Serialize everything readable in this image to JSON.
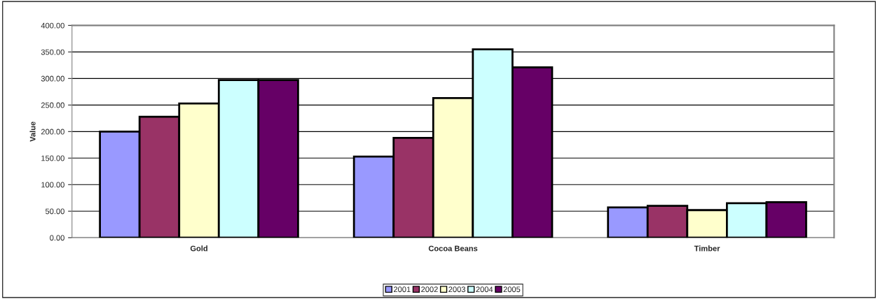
{
  "chart_data": {
    "type": "bar",
    "ylabel": "Value",
    "categories": [
      "Gold",
      "Cocoa Beans",
      "Timber"
    ],
    "series": [
      {
        "name": "2001",
        "color": "#9999ff",
        "values": [
          200,
          153,
          57
        ]
      },
      {
        "name": "2002",
        "color": "#993366",
        "values": [
          228,
          188,
          60
        ]
      },
      {
        "name": "2003",
        "color": "#ffffcc",
        "values": [
          253,
          263,
          52
        ]
      },
      {
        "name": "2004",
        "color": "#ccffff",
        "values": [
          297,
          355,
          65
        ]
      },
      {
        "name": "2005",
        "color": "#660066",
        "values": [
          297,
          321,
          67
        ]
      }
    ],
    "ylim": [
      0,
      400
    ],
    "yticks": [
      {
        "value": 0,
        "label": "0.00"
      },
      {
        "value": 50,
        "label": "50.00"
      },
      {
        "value": 100,
        "label": "100.00"
      },
      {
        "value": 150,
        "label": "150.00"
      },
      {
        "value": 200,
        "label": "200.00"
      },
      {
        "value": 250,
        "label": "250.00"
      },
      {
        "value": 300,
        "label": "300.00"
      },
      {
        "value": 350,
        "label": "350.00"
      },
      {
        "value": 400,
        "label": "400.00"
      }
    ],
    "grid": "y",
    "legend": "bottom"
  }
}
